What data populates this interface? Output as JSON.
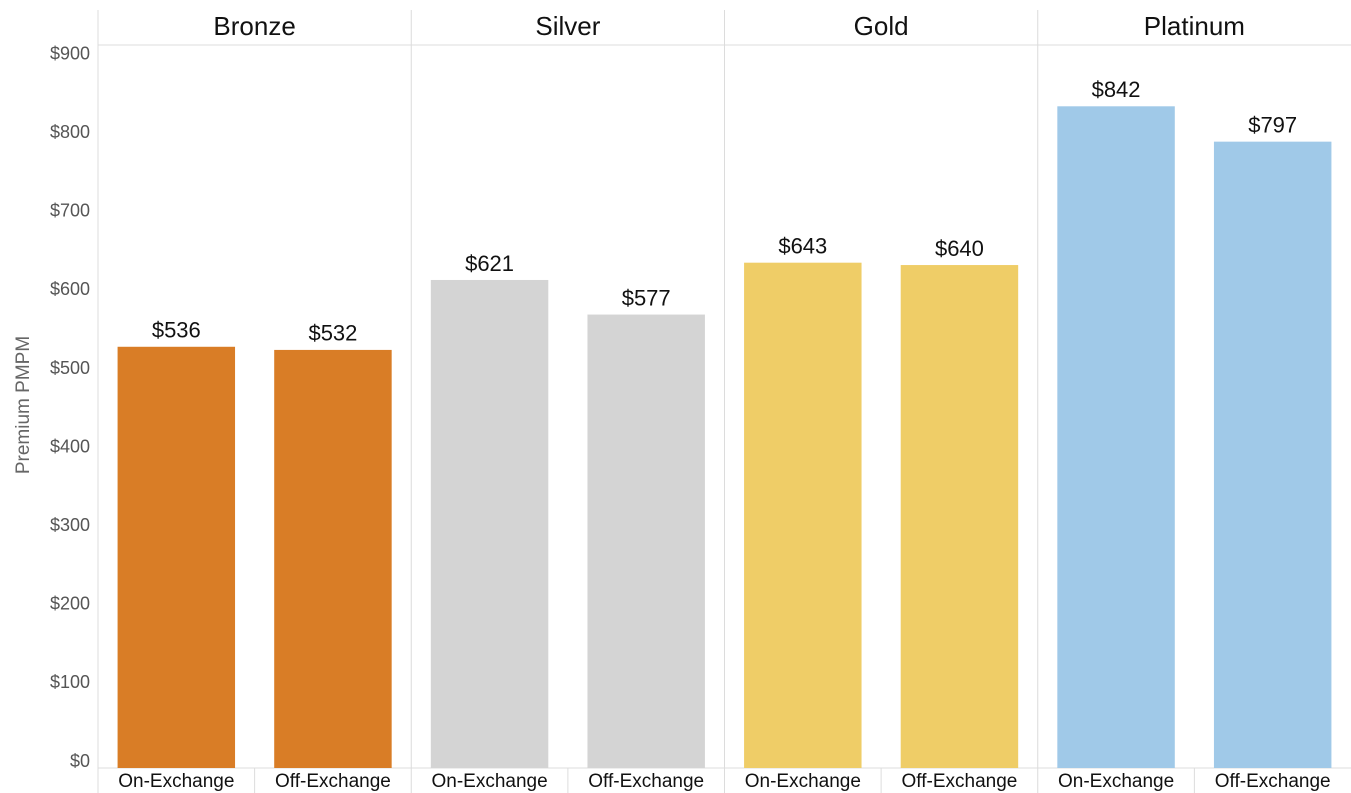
{
  "chart_data": {
    "type": "bar",
    "y_label": "Premium PMPM",
    "ylim": [
      0,
      920
    ],
    "yticks": [
      {
        "value": 0,
        "label": "$0"
      },
      {
        "value": 100,
        "label": "$100"
      },
      {
        "value": 200,
        "label": "$200"
      },
      {
        "value": 300,
        "label": "$300"
      },
      {
        "value": 400,
        "label": "$400"
      },
      {
        "value": 500,
        "label": "$500"
      },
      {
        "value": 600,
        "label": "$600"
      },
      {
        "value": 700,
        "label": "$700"
      },
      {
        "value": 800,
        "label": "$800"
      },
      {
        "value": 900,
        "label": "$900"
      }
    ],
    "grid": false,
    "panels": [
      {
        "name": "Bronze",
        "color": "#d97d26",
        "categories": [
          "On-Exchange",
          "Off-Exchange"
        ],
        "values": [
          536,
          532
        ],
        "value_labels": [
          "$536",
          "$532"
        ]
      },
      {
        "name": "Silver",
        "color": "#d4d4d4",
        "categories": [
          "On-Exchange",
          "Off-Exchange"
        ],
        "values": [
          621,
          577
        ],
        "value_labels": [
          "$621",
          "$577"
        ]
      },
      {
        "name": "Gold",
        "color": "#efcd67",
        "categories": [
          "On-Exchange",
          "Off-Exchange"
        ],
        "values": [
          643,
          640
        ],
        "value_labels": [
          "$643",
          "$640"
        ]
      },
      {
        "name": "Platinum",
        "color": "#a0c9e8",
        "categories": [
          "On-Exchange",
          "Off-Exchange"
        ],
        "values": [
          842,
          797
        ],
        "value_labels": [
          "$842",
          "$797"
        ]
      }
    ]
  }
}
